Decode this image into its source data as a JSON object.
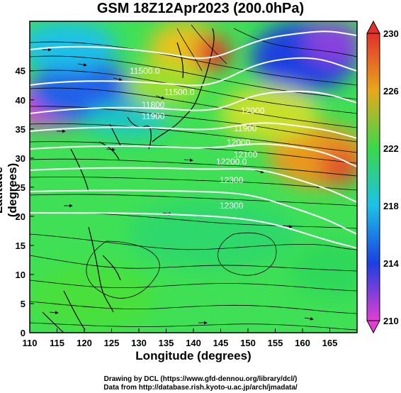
{
  "title": "GSM 18Z12Apr2023 (200.0hPa)",
  "x_axis_label": "Longitude (degrees)",
  "y_axis_label": "Latitude (degrees)",
  "credits": [
    "Drawing by DCL (https://www.gfd-dennou.org/library/dcl/)",
    "Data from http://database.rish.kyoto-u.ac.jp/arch/jmadata/"
  ],
  "x_ticks": [
    "110",
    "115",
    "120",
    "125",
    "130",
    "135",
    "140",
    "145",
    "150",
    "155",
    "160",
    "165"
  ],
  "y_ticks": [
    "0",
    "5",
    "10",
    "15",
    "20",
    "25",
    "30",
    "35",
    "40",
    "45"
  ],
  "colorbar_ticks": [
    "210",
    "214",
    "218",
    "222",
    "226",
    "230"
  ],
  "contour_labels": [
    "11500.0",
    "11500.0",
    "11800",
    "11900",
    "11900",
    "12000",
    "12000",
    "12100",
    "12200.0",
    "12300",
    "12300"
  ],
  "colors": {
    "shade_210": "#e23fd2",
    "shade_214": "#1b3fe0",
    "shade_218": "#1cc1e8",
    "shade_222": "#3ad84a",
    "shade_226": "#e8a81b",
    "shade_230": "#e2302c",
    "contour": "#ffffff",
    "streamline": "#000000"
  },
  "chart_data": {
    "type": "heatmap",
    "field": "temperature shading with geopotential height contours and wind streamlines",
    "x_range": [
      110,
      170
    ],
    "y_range": [
      0,
      50
    ],
    "colorbar_range": [
      210,
      230
    ]
  }
}
